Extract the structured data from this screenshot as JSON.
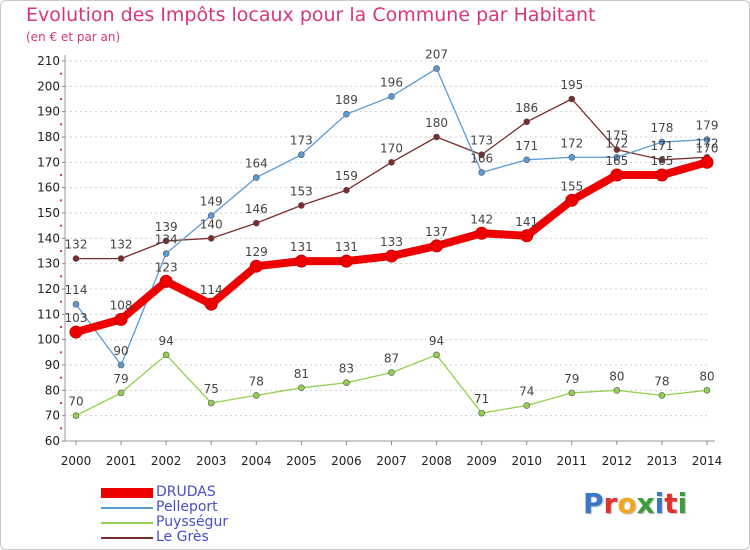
{
  "header": {
    "title": "Evolution des Impôts locaux pour la Commune par Habitant",
    "subtitle": "(en € et par an)"
  },
  "logo": {
    "text": "Proxiti",
    "letter_colors": [
      "#3a78c7",
      "#e2322f",
      "#f0a81d",
      "#3a9f3a",
      "#3a78c7",
      "#e2322f",
      "#3a9f3a"
    ]
  },
  "chart_data": {
    "type": "line",
    "title": "Evolution des Impôts locaux pour la Commune par Habitant",
    "subtitle": "(en € et par an)",
    "x": [
      "2000",
      "2001",
      "2002",
      "2003",
      "2004",
      "2005",
      "2006",
      "2007",
      "2008",
      "2009",
      "2010",
      "2011",
      "2012",
      "2013",
      "2014"
    ],
    "ylim": [
      60,
      210
    ],
    "yticks": [
      60,
      70,
      80,
      90,
      100,
      110,
      120,
      130,
      140,
      150,
      160,
      170,
      180,
      190,
      200,
      210
    ],
    "grid": "horizontal dotted",
    "legend_position": "bottom-left",
    "series": [
      {
        "name": "DRUDAS",
        "color": "#ee0000",
        "values": [
          103,
          108,
          123,
          114,
          129,
          131,
          131,
          133,
          137,
          142,
          141,
          155,
          165,
          165,
          170
        ]
      },
      {
        "name": "Pelleport",
        "color": "#5b9bd5",
        "values": [
          114,
          90,
          134,
          149,
          164,
          173,
          189,
          196,
          207,
          166,
          171,
          172,
          172,
          178,
          179
        ]
      },
      {
        "name": "Puysségur",
        "color": "#92d050",
        "values": [
          70,
          79,
          94,
          75,
          78,
          81,
          83,
          87,
          94,
          71,
          74,
          79,
          80,
          78,
          80
        ]
      },
      {
        "name": "Le Grès",
        "color": "#7b2c2c",
        "values": [
          132,
          132,
          139,
          140,
          146,
          153,
          159,
          170,
          180,
          173,
          186,
          195,
          175,
          171,
          172
        ]
      }
    ]
  }
}
